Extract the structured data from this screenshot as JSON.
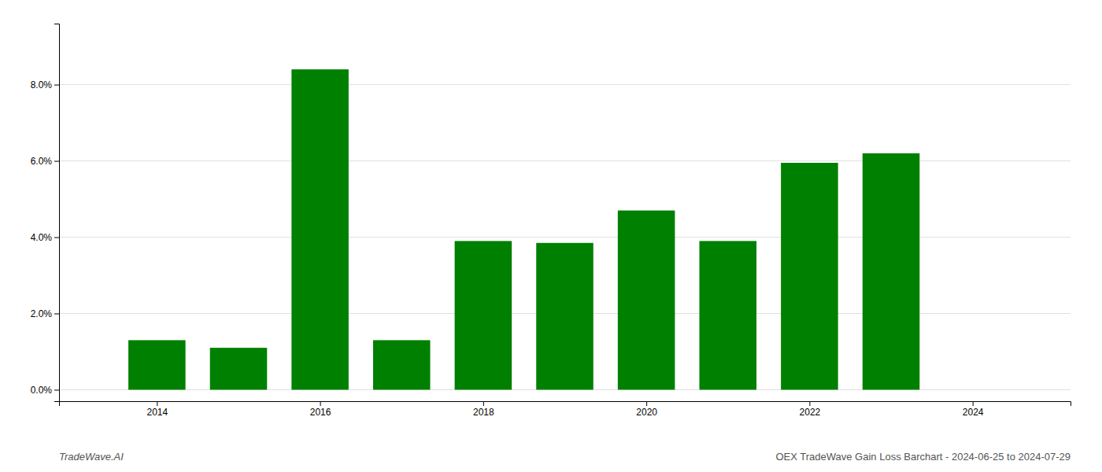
{
  "chart_data": {
    "type": "bar",
    "x": [
      2014,
      2015,
      2016,
      2017,
      2018,
      2019,
      2020,
      2021,
      2022,
      2023
    ],
    "values": [
      0.013,
      0.011,
      0.084,
      0.013,
      0.039,
      0.0385,
      0.047,
      0.039,
      0.0595,
      0.062
    ],
    "color": "#008000",
    "xlim": [
      2012.8,
      2025.2
    ],
    "xticks": [
      2014,
      2016,
      2018,
      2020,
      2022,
      2024
    ],
    "ylim": [
      -0.003,
      0.096
    ],
    "yticks": [
      {
        "value": 0.0,
        "label": "0.0%"
      },
      {
        "value": 0.02,
        "label": "2.0%"
      },
      {
        "value": 0.04,
        "label": "4.0%"
      },
      {
        "value": 0.06,
        "label": "6.0%"
      },
      {
        "value": 0.08,
        "label": "8.0%"
      }
    ],
    "grid": true,
    "annotations": [
      "TradeWave.AI",
      "OEX TradeWave Gain Loss Barchart - 2024-06-25 to 2024-07-29"
    ]
  }
}
